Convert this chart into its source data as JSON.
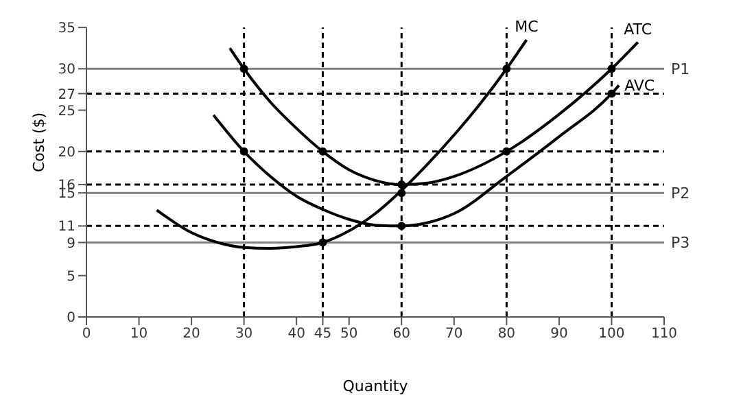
{
  "chart_data": {
    "type": "line",
    "xlabel": "Quantity",
    "ylabel": "Cost ($)",
    "xlim": [
      0,
      110
    ],
    "xticks": [
      0,
      10,
      20,
      30,
      40,
      45,
      50,
      60,
      70,
      80,
      90,
      100,
      110
    ],
    "ylim": [
      0,
      35
    ],
    "yticks": [
      0,
      5,
      9,
      11,
      15,
      16,
      20,
      25,
      27,
      30,
      35
    ],
    "grid": false,
    "legend": false,
    "marker": "none",
    "line_style": "solid",
    "series": [
      {
        "name": "MC",
        "color": "#000000",
        "x": [
          13.4,
          20,
          25,
          30,
          35,
          40,
          45,
          50,
          55,
          60,
          65,
          70,
          75,
          80,
          83.8
        ],
        "values": [
          12.9,
          10.2,
          9,
          8.4,
          8.3,
          8.5,
          9,
          10.4,
          12.5,
          15.3,
          18.5,
          22,
          25.8,
          30,
          33.5
        ]
      },
      {
        "name": "ATC",
        "color": "#000000",
        "x": [
          27.3,
          30,
          35,
          40,
          45,
          50,
          55,
          60,
          65,
          70,
          80,
          90,
          100,
          105
        ],
        "values": [
          32.5,
          30,
          26,
          22.8,
          20,
          17.8,
          16.5,
          16,
          16.2,
          17,
          20,
          24.5,
          30,
          33.2
        ]
      },
      {
        "name": "AVC",
        "color": "#000000",
        "x": [
          24.2,
          30,
          35,
          40,
          45,
          50,
          55,
          60,
          65,
          70,
          80,
          90,
          100,
          101.4
        ],
        "values": [
          24.4,
          20,
          17,
          14.6,
          13,
          11.8,
          11.1,
          11,
          11.4,
          12.5,
          17,
          21.8,
          27,
          28
        ]
      },
      {
        "type": "scatter",
        "marker": "circle",
        "color": "#000000",
        "x": [
          30,
          30,
          45,
          45,
          60,
          60,
          60,
          80,
          80,
          100,
          100
        ],
        "values": [
          30,
          20,
          20,
          9,
          16,
          15,
          11,
          30,
          20,
          30,
          27
        ]
      }
    ],
    "ref_lines": [
      {
        "axis": "y",
        "value": 30,
        "label": "P1",
        "color": "#808080",
        "line_style": "solid"
      },
      {
        "axis": "y",
        "value": 15,
        "label": "P2",
        "color": "#808080",
        "line_style": "solid"
      },
      {
        "axis": "y",
        "value": 9,
        "label": "P3",
        "color": "#808080",
        "line_style": "solid"
      },
      {
        "axis": "y",
        "value": 27,
        "color": "#000000",
        "line_style": "dashed"
      },
      {
        "axis": "y",
        "value": 20,
        "color": "#000000",
        "line_style": "dashed"
      },
      {
        "axis": "y",
        "value": 16,
        "color": "#000000",
        "line_style": "dashed"
      },
      {
        "axis": "y",
        "value": 11,
        "color": "#000000",
        "line_style": "dashed"
      },
      {
        "axis": "x",
        "value": 30,
        "color": "#000000",
        "line_style": "dashed"
      },
      {
        "axis": "x",
        "value": 45,
        "color": "#000000",
        "line_style": "dashed"
      },
      {
        "axis": "x",
        "value": 60,
        "color": "#000000",
        "line_style": "dashed"
      },
      {
        "axis": "x",
        "value": 80,
        "color": "#000000",
        "line_style": "dashed"
      },
      {
        "axis": "x",
        "value": 100,
        "color": "#000000",
        "line_style": "dashed"
      }
    ]
  }
}
